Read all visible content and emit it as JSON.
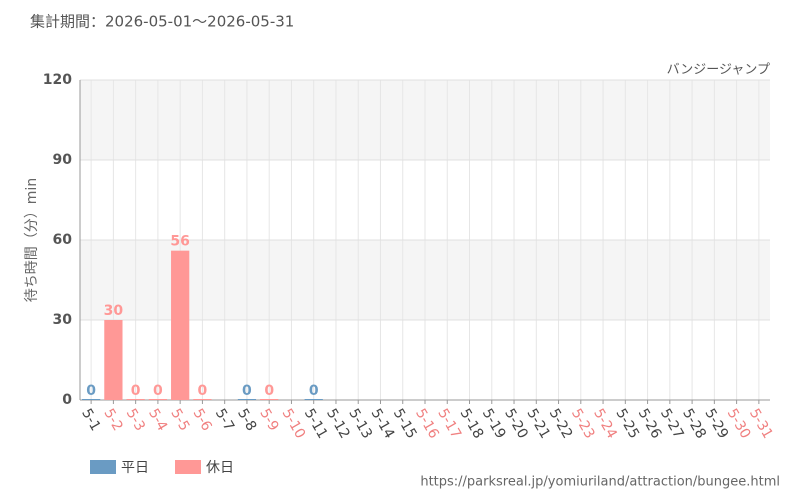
{
  "chart_data": {
    "type": "bar",
    "header": "集計期間：2026-05-01～2026-05-31",
    "title": "バンジージャンプ",
    "y_label": "待ち時間（分）min",
    "footer": "https://parksreal.jp/yomiuriland/attraction/bungee.html",
    "categories": [
      "5-1",
      "5-2",
      "5-3",
      "5-4",
      "5-5",
      "5-6",
      "5-7",
      "5-8",
      "5-9",
      "5-10",
      "5-11",
      "5-12",
      "5-13",
      "5-14",
      "5-15",
      "5-16",
      "5-17",
      "5-18",
      "5-19",
      "5-20",
      "5-21",
      "5-22",
      "5-23",
      "5-24",
      "5-25",
      "5-26",
      "5-27",
      "5-28",
      "5-29",
      "5-30",
      "5-31"
    ],
    "category_series": [
      0,
      1,
      1,
      1,
      1,
      1,
      0,
      0,
      1,
      1,
      0,
      0,
      0,
      0,
      0,
      1,
      1,
      0,
      0,
      0,
      0,
      0,
      1,
      1,
      0,
      0,
      0,
      0,
      0,
      1,
      1
    ],
    "series": [
      {
        "name": "平日",
        "color": "#6a9bc3",
        "label_color": "#444444",
        "values": [
          0,
          null,
          null,
          null,
          null,
          null,
          null,
          0,
          null,
          null,
          0,
          null,
          null,
          null,
          null,
          null,
          null,
          null,
          null,
          null,
          null,
          null,
          null,
          null,
          null,
          null,
          null,
          null,
          null,
          null,
          null
        ]
      },
      {
        "name": "休日",
        "color": "#ff9896",
        "label_color": "#f08080",
        "values": [
          null,
          30,
          0,
          0,
          56,
          0,
          null,
          null,
          0,
          null,
          null,
          null,
          null,
          null,
          null,
          null,
          null,
          null,
          null,
          null,
          null,
          null,
          null,
          null,
          null,
          null,
          null,
          null,
          null,
          null,
          null
        ]
      }
    ],
    "ylim": [
      0,
      120
    ],
    "yticks": [
      0,
      30,
      60,
      90,
      120
    ],
    "grid": true
  }
}
